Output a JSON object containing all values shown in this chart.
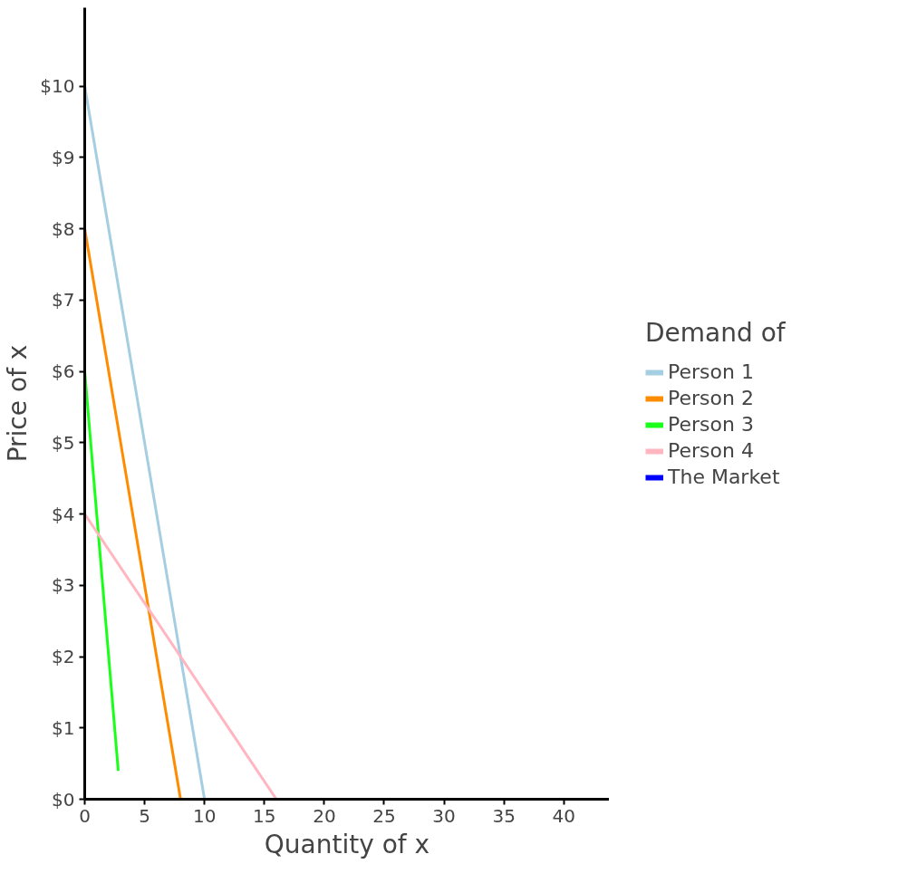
{
  "chart_data": {
    "type": "line",
    "xlabel": "Quantity of x",
    "ylabel": "Price of x",
    "legend_title": "Demand of",
    "legend": "right",
    "grid": false,
    "xlim": [
      0,
      43.8
    ],
    "ylim": [
      0,
      11.1
    ],
    "xticks": [
      0,
      5,
      10,
      15,
      20,
      25,
      30,
      35,
      40
    ],
    "yticks": [
      {
        "value": 0,
        "label": "$0"
      },
      {
        "value": 1,
        "label": "$1"
      },
      {
        "value": 2,
        "label": "$2"
      },
      {
        "value": 3,
        "label": "$3"
      },
      {
        "value": 4,
        "label": "$4"
      },
      {
        "value": 5,
        "label": "$5"
      },
      {
        "value": 6,
        "label": "$6"
      },
      {
        "value": 7,
        "label": "$7"
      },
      {
        "value": 8,
        "label": "$8"
      },
      {
        "value": 9,
        "label": "$9"
      },
      {
        "value": 10,
        "label": "$10"
      }
    ],
    "series": [
      {
        "name": "Person 1",
        "color": "#a6cee3",
        "x": [
          0,
          10
        ],
        "values": [
          10,
          0
        ]
      },
      {
        "name": "Person 2",
        "color": "#ff8c00",
        "x": [
          0,
          8
        ],
        "values": [
          8,
          0
        ]
      },
      {
        "name": "Person 3",
        "color": "#1aff1a",
        "x": [
          0,
          2.8
        ],
        "values": [
          6,
          0.4
        ]
      },
      {
        "name": "Person 4",
        "color": "#ffb6c1",
        "x": [
          0,
          16
        ],
        "values": [
          4,
          0
        ]
      },
      {
        "name": "The Market",
        "color": "#0000ff",
        "values": [
          null
        ]
      }
    ]
  }
}
